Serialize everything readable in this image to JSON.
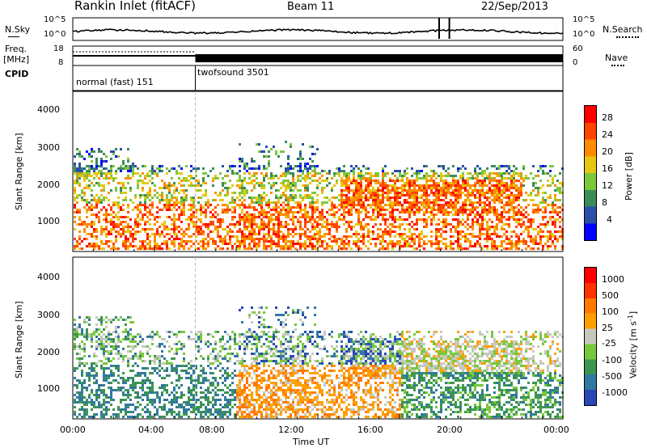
{
  "header": {
    "station": "Rankin Inlet (fitACF)",
    "beam": "Beam 11",
    "date": "22/Sep/2013"
  },
  "left_labels": {
    "nsky": "N.Sky",
    "freq": "Freq.",
    "mhz": "[MHz]",
    "cpid": "CPID"
  },
  "right_labels": {
    "nsearch": "N.Search",
    "nave": "Nave"
  },
  "noise_panel": {
    "ticks_left": [
      "10^5",
      "10^0"
    ],
    "ticks_right": [
      "10^5",
      "10^0"
    ]
  },
  "freq_panel": {
    "ticks_left": [
      "18",
      "8"
    ],
    "ticks_right": [
      "60",
      "0"
    ]
  },
  "cpid_panel": {
    "modes": [
      {
        "label": "normal (fast) 151",
        "start_hour": 0,
        "end_hour": 6
      },
      {
        "label": "twofsound 3501",
        "start_hour": 6,
        "end_hour": 24
      }
    ]
  },
  "power_panel": {
    "ylabel": "Slant Range [km]",
    "yticks": [
      "4000",
      "3000",
      "2000",
      "1000"
    ],
    "colorbar_label": "Power [dB]",
    "colorbar_ticks": [
      "28",
      "24",
      "20",
      "16",
      "12",
      "8",
      "4"
    ],
    "colors": [
      "#0000ff",
      "#2a4fa8",
      "#3c8c5a",
      "#7cc83c",
      "#e6c814",
      "#ff8c00",
      "#ff4600",
      "#ff0000"
    ]
  },
  "velocity_panel": {
    "ylabel": "Slant Range [km]",
    "yticks": [
      "4000",
      "3000",
      "2000",
      "1000"
    ],
    "colorbar_label": "Velocity [m s^-1]",
    "colorbar_ticks": [
      "1000",
      "500",
      "100",
      "25",
      "-25",
      "-100",
      "-500",
      "-1000"
    ],
    "colors": [
      "#2846b4",
      "#3278a0",
      "#3c9650",
      "#78c83c",
      "#c8c8c0",
      "#ffa000",
      "#ff7800",
      "#ff3200",
      "#ff0000"
    ]
  },
  "x_axis": {
    "ticks": [
      "00:00",
      "04:00",
      "08:00",
      "12:00",
      "16:00",
      "20:00",
      "00:00"
    ],
    "label": "Time UT"
  },
  "chart_data": [
    {
      "type": "line",
      "title": "N.Sky / N.Search",
      "x_range_hours": [
        0,
        24
      ],
      "y_scale": "log",
      "ylim": [
        "10^0",
        "10^5"
      ],
      "note": ""
    },
    {
      "type": "heatmap",
      "title": "Power [dB]",
      "xlabel": "Time UT",
      "ylabel": "Slant Range [km]",
      "x_range_hours": [
        0,
        24
      ],
      "ylim": [
        180,
        4500
      ],
      "color_scale": [
        0,
        32
      ],
      "note": ""
    },
    {
      "type": "heatmap",
      "title": "Velocity [m s^-1]",
      "xlabel": "Time UT",
      "ylabel": "Slant Range [km]",
      "x_range_hours": [
        0,
        24
      ],
      "ylim": [
        180,
        4500
      ],
      "color_scale": [
        -1000,
        1000
      ],
      "note": ""
    }
  ]
}
